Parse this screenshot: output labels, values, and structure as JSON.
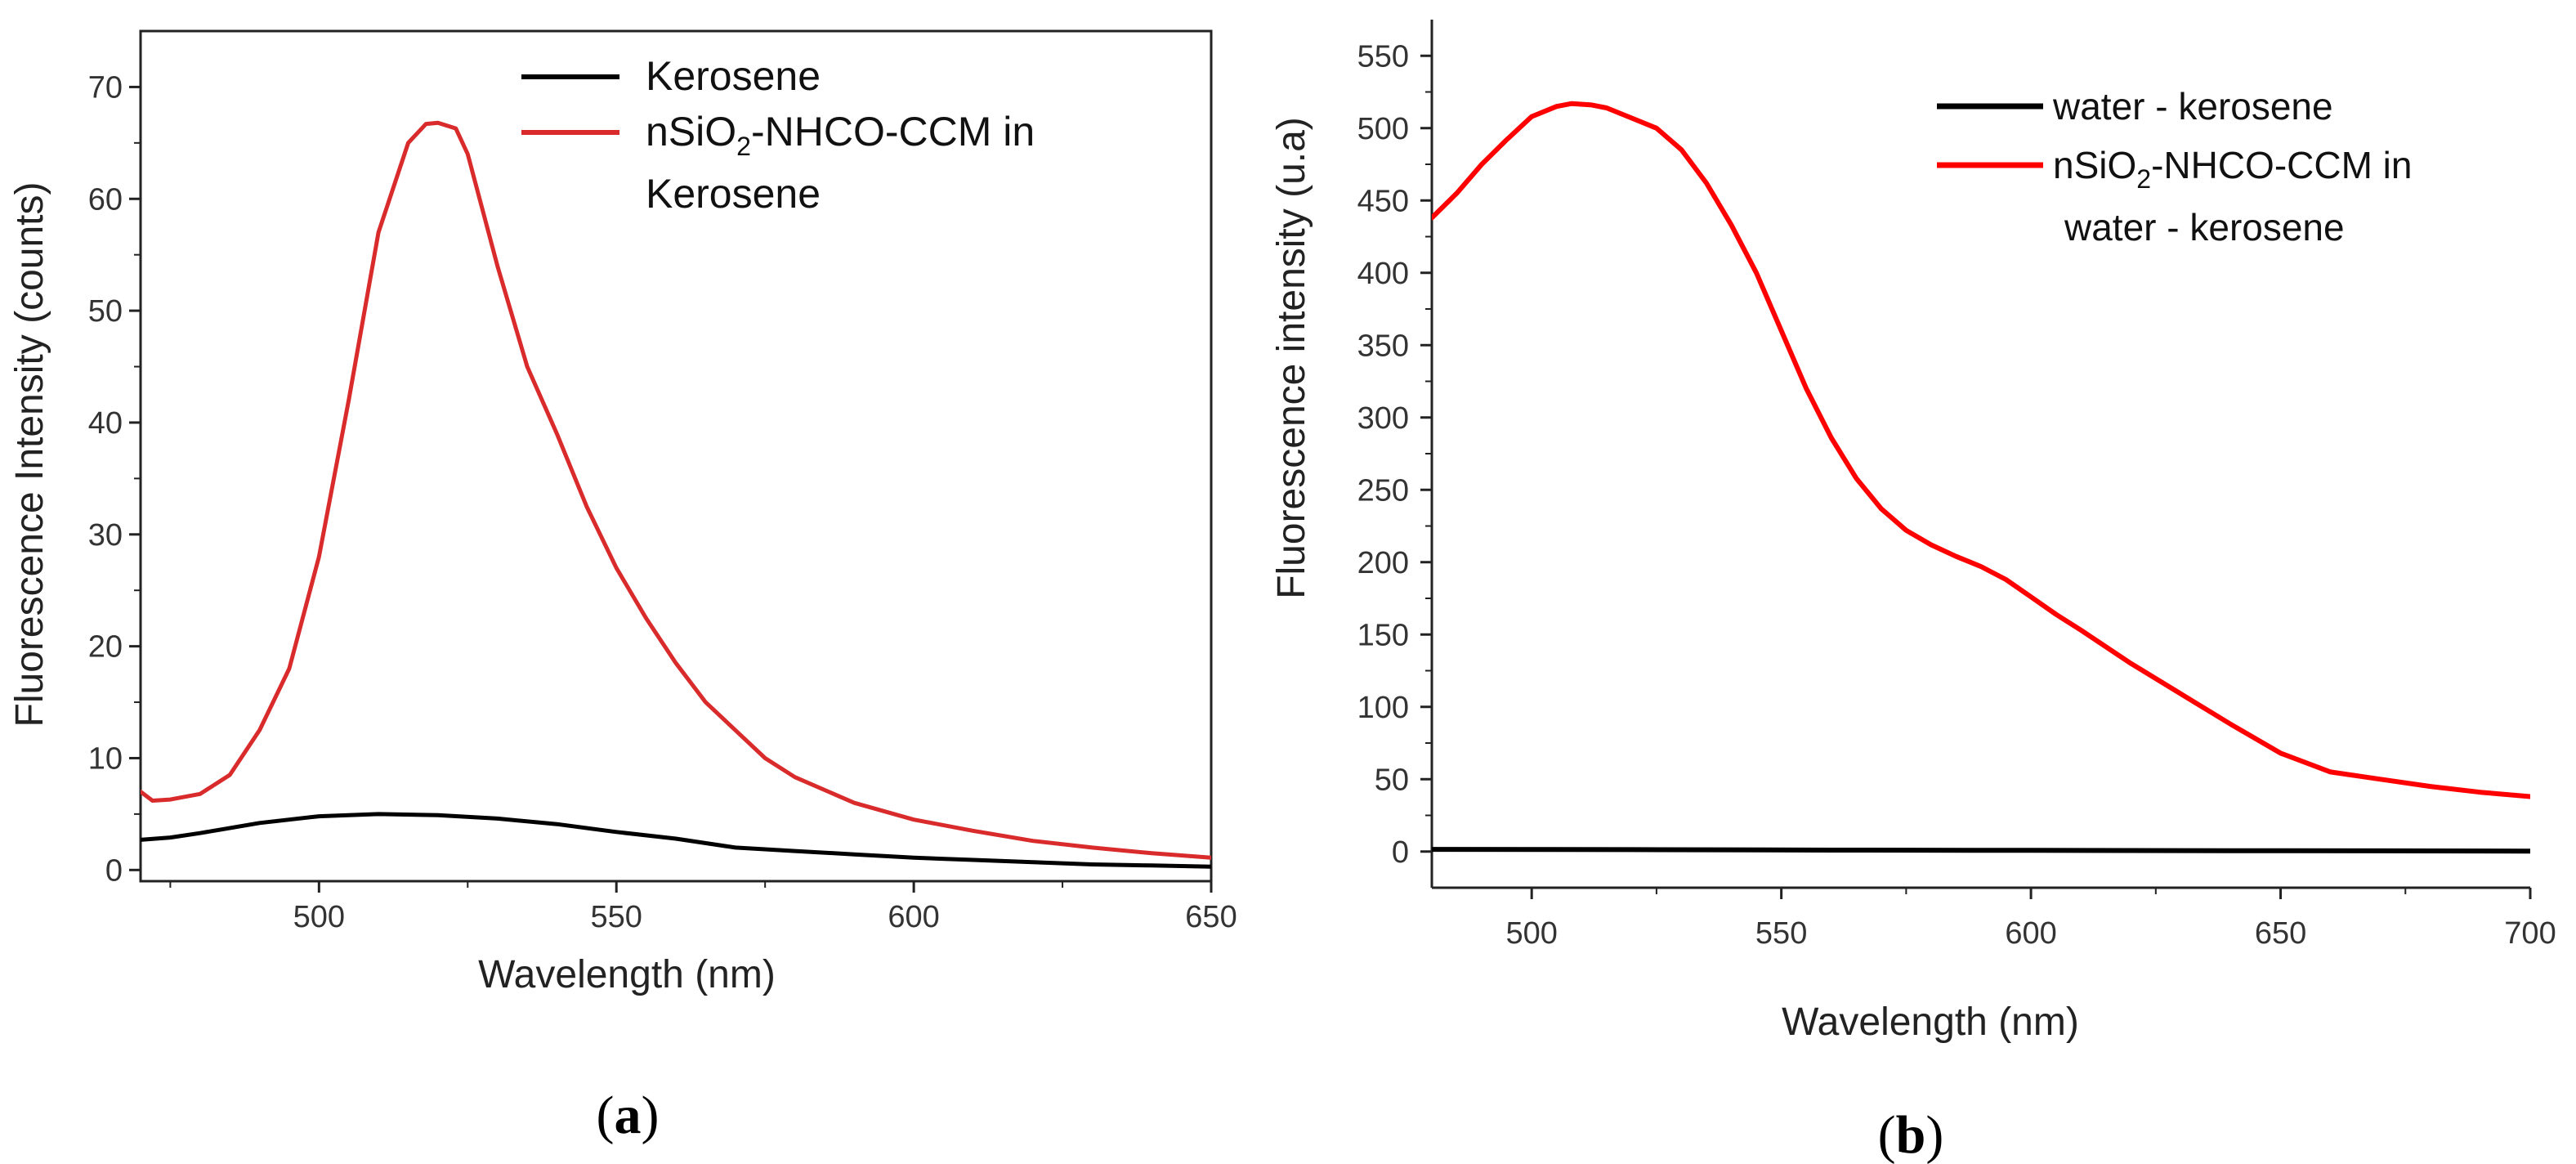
{
  "chart_data": [
    {
      "type": "line",
      "panel_label": "a",
      "xlabel": "Wavelength (nm)",
      "ylabel": "Fluorescence Intensity (counts)",
      "xlim": [
        470,
        650
      ],
      "ylim": [
        -1,
        75
      ],
      "xticks": [
        500,
        550,
        600,
        650
      ],
      "yticks": [
        0,
        10,
        20,
        30,
        40,
        50,
        60,
        70
      ],
      "legend_position": "top-right",
      "series": [
        {
          "name": "Kerosene",
          "color": "#000000",
          "x": [
            470,
            475,
            480,
            490,
            500,
            510,
            520,
            530,
            540,
            550,
            560,
            570,
            580,
            590,
            600,
            610,
            620,
            630,
            640,
            650
          ],
          "y": [
            2.7,
            2.9,
            3.3,
            4.2,
            4.8,
            5.0,
            4.9,
            4.6,
            4.1,
            3.4,
            2.8,
            2.0,
            1.7,
            1.4,
            1.1,
            0.9,
            0.7,
            0.5,
            0.4,
            0.3
          ]
        },
        {
          "name": "nSiO2-NHCO-CCM in Kerosene",
          "label_parts": {
            "pre": "nSiO",
            "sub": "2",
            "post": "-NHCO-CCM in",
            "line2": "Kerosene"
          },
          "color": "#d92b2b",
          "x": [
            470,
            472,
            475,
            480,
            485,
            490,
            495,
            500,
            505,
            510,
            515,
            518,
            520,
            523,
            525,
            530,
            535,
            540,
            545,
            550,
            555,
            560,
            565,
            570,
            575,
            580,
            590,
            600,
            610,
            620,
            630,
            640,
            650
          ],
          "y": [
            7.0,
            6.2,
            6.3,
            6.8,
            8.5,
            12.5,
            18.0,
            28.0,
            42.0,
            57.0,
            65.0,
            66.7,
            66.8,
            66.3,
            64.0,
            54.0,
            45.0,
            39.0,
            32.5,
            27.0,
            22.5,
            18.5,
            15.0,
            12.5,
            10.0,
            8.3,
            6.0,
            4.5,
            3.5,
            2.6,
            2.0,
            1.5,
            1.1
          ]
        }
      ]
    },
    {
      "type": "line",
      "panel_label": "b",
      "xlabel": "Wavelength (nm)",
      "ylabel": "Fluorescence intensity (u.a)",
      "xlim": [
        480,
        700
      ],
      "ylim": [
        -25,
        575
      ],
      "xticks": [
        500,
        550,
        600,
        650,
        700
      ],
      "yticks": [
        0,
        50,
        100,
        150,
        200,
        250,
        300,
        350,
        400,
        450,
        500,
        550
      ],
      "legend_position": "top-right",
      "series": [
        {
          "name": "water - kerosene",
          "color": "#000000",
          "x": [
            480,
            520,
            560,
            600,
            640,
            680,
            700
          ],
          "y": [
            1.5,
            1.3,
            1.0,
            0.8,
            0.6,
            0.4,
            0.3
          ]
        },
        {
          "name": "nSiO2-NHCO-CCM in water - kerosene",
          "label_parts": {
            "pre": "nSiO",
            "sub": "2",
            "post": "-NHCO-CCM in",
            "line2": "water - kerosene"
          },
          "color": "#ff0000",
          "x": [
            480,
            485,
            490,
            495,
            500,
            505,
            508,
            512,
            515,
            520,
            525,
            530,
            535,
            540,
            545,
            550,
            555,
            560,
            565,
            570,
            575,
            580,
            585,
            590,
            595,
            600,
            605,
            610,
            620,
            630,
            640,
            650,
            660,
            670,
            680,
            690,
            700
          ],
          "y": [
            438,
            455,
            475,
            492,
            508,
            515,
            517,
            516,
            514,
            507,
            500,
            485,
            462,
            433,
            400,
            360,
            320,
            286,
            258,
            237,
            222,
            212,
            204,
            197,
            188,
            176,
            164,
            153,
            130,
            109,
            88,
            68,
            55,
            50,
            45,
            41,
            38
          ]
        }
      ]
    }
  ],
  "captions": {
    "a": "(a)",
    "b": "(b)"
  },
  "captions_parts": {
    "a": {
      "open": "(",
      "letter": "a",
      "close": ")"
    },
    "b": {
      "open": "(",
      "letter": "b",
      "close": ")"
    }
  }
}
